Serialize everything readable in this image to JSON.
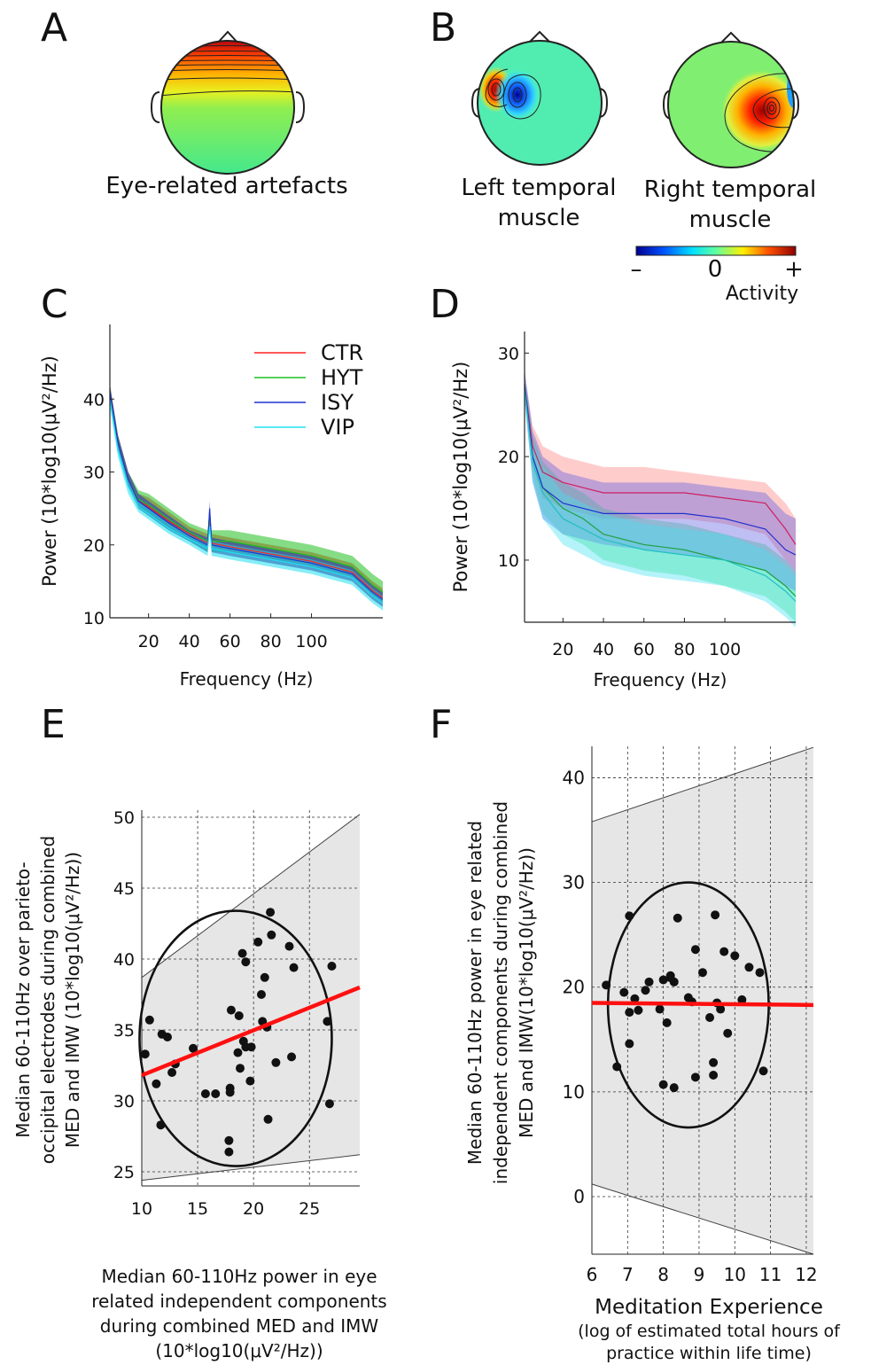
{
  "panels": {
    "A": {
      "letter": "A",
      "caption": "Eye-related artefacts"
    },
    "B": {
      "letter": "B",
      "caption_left_1": "Left temporal",
      "caption_left_2": "muscle",
      "caption_right_1": "Right temporal",
      "caption_right_2": "muscle"
    },
    "C": {
      "letter": "C"
    },
    "D": {
      "letter": "D"
    },
    "E": {
      "letter": "E"
    },
    "F": {
      "letter": "F"
    }
  },
  "colorbar": {
    "minus": "–",
    "zero": "0",
    "plus": "+",
    "label": "Activity",
    "colors": [
      "#00008f",
      "#0050ff",
      "#00dfff",
      "#60ff9f",
      "#ffef00",
      "#ff5000",
      "#8f0000"
    ]
  },
  "chart_data": [
    {
      "id": "C",
      "type": "area",
      "xlabel": "Frequency (Hz)",
      "ylabel": "Power  (10*log10(μV²/Hz)",
      "xticks": [
        20,
        40,
        60,
        80,
        100
      ],
      "yticks": [
        10,
        20,
        30,
        40
      ],
      "xlim": [
        1,
        135
      ],
      "ylim": [
        10,
        50
      ],
      "legend": [
        "CTR",
        "HYT",
        "ISY",
        "VIP"
      ],
      "series": [
        {
          "name": "CTR",
          "color": "#ff2020",
          "x": [
            1,
            5,
            10,
            15,
            20,
            30,
            40,
            49,
            50,
            51,
            60,
            80,
            100,
            120,
            130,
            135
          ],
          "lo": [
            40,
            33,
            28,
            25,
            24,
            22,
            20.5,
            19,
            23,
            19,
            18.5,
            17.5,
            16.5,
            15,
            12.5,
            11.5
          ],
          "hi": [
            42,
            35,
            30,
            27,
            26.5,
            24.5,
            22.5,
            21.5,
            25,
            21.5,
            21,
            20,
            19,
            17.5,
            15,
            14
          ]
        },
        {
          "name": "HYT",
          "color": "#20c020",
          "x": [
            1,
            5,
            10,
            15,
            20,
            30,
            40,
            49,
            50,
            51,
            60,
            80,
            100,
            120,
            130,
            135
          ],
          "lo": [
            40,
            33,
            28,
            25,
            24,
            22,
            20.5,
            19,
            23,
            19,
            19,
            18,
            17,
            15.5,
            13,
            12
          ],
          "hi": [
            42,
            35,
            30,
            27.5,
            27,
            25,
            23,
            22,
            25,
            22,
            22,
            21,
            20,
            18.5,
            16,
            15
          ]
        },
        {
          "name": "ISY",
          "color": "#2030d0",
          "x": [
            1,
            5,
            10,
            15,
            20,
            30,
            40,
            49,
            50,
            51,
            60,
            80,
            100,
            120,
            130,
            135
          ],
          "lo": [
            40,
            33,
            28,
            25,
            24,
            22,
            20.5,
            19,
            24,
            19,
            18.5,
            17.5,
            16.5,
            15,
            12.5,
            11.5
          ],
          "hi": [
            42,
            35,
            30,
            27,
            26,
            24,
            22,
            21,
            26,
            21,
            20.5,
            19.5,
            18.5,
            17,
            14.5,
            13.5
          ]
        },
        {
          "name": "VIP",
          "color": "#20e0f0",
          "x": [
            1,
            5,
            10,
            15,
            20,
            30,
            40,
            49,
            50,
            51,
            60,
            80,
            100,
            120,
            130,
            135
          ],
          "lo": [
            39,
            32,
            27,
            24.5,
            23.5,
            21.5,
            20,
            18.5,
            22,
            18.5,
            18,
            17,
            16,
            14.5,
            12,
            11
          ],
          "hi": [
            41,
            34,
            29,
            26,
            25,
            23,
            21.5,
            20.5,
            23,
            20.5,
            20,
            19,
            18,
            16.5,
            14,
            13
          ]
        }
      ]
    },
    {
      "id": "D",
      "type": "area",
      "xlabel": "Frequency (Hz)",
      "ylabel": "Power  (10*log10(μV²/Hz)",
      "xticks": [
        20,
        40,
        60,
        80,
        100
      ],
      "yticks": [
        10,
        20,
        30
      ],
      "xlim": [
        1,
        135
      ],
      "ylim": [
        4,
        32
      ],
      "series": [
        {
          "name": "CTR",
          "color": "#cc2060",
          "fill": "#ff8080",
          "x": [
            1,
            5,
            10,
            20,
            30,
            40,
            60,
            80,
            100,
            120,
            130,
            135
          ],
          "mid": [
            27,
            21,
            18.5,
            17.5,
            17,
            16.5,
            16.5,
            16.5,
            16,
            15.5,
            13,
            11.5
          ],
          "lo": [
            26,
            19,
            16,
            15,
            14.5,
            14,
            14,
            14,
            13.5,
            12.5,
            10,
            9
          ],
          "hi": [
            28,
            23,
            21,
            20,
            19.5,
            19,
            19,
            18.5,
            18,
            17.5,
            15.5,
            14
          ]
        },
        {
          "name": "HYT",
          "color": "#20a040",
          "fill": "#40e080",
          "x": [
            1,
            5,
            10,
            20,
            30,
            40,
            50,
            60,
            80,
            100,
            120,
            130,
            135
          ],
          "mid": [
            27,
            20,
            17,
            15,
            14,
            12.5,
            12,
            11.5,
            11,
            10,
            9,
            7.5,
            6.5
          ],
          "lo": [
            26,
            18,
            14.5,
            12.5,
            11.5,
            10,
            9.5,
            9,
            8.5,
            7.5,
            6.5,
            5,
            4
          ],
          "hi": [
            28,
            22,
            19.5,
            17.5,
            16.5,
            15,
            14.5,
            14,
            13.5,
            12.5,
            11.5,
            10,
            9
          ]
        },
        {
          "name": "ISY",
          "color": "#2030d0",
          "fill": "#6060e0",
          "x": [
            1,
            5,
            10,
            20,
            30,
            40,
            60,
            80,
            100,
            120,
            130,
            135
          ],
          "mid": [
            27,
            20,
            17,
            15.5,
            15,
            14.5,
            14.5,
            14.5,
            14,
            13,
            11,
            10.5
          ],
          "lo": [
            25.5,
            17.5,
            14,
            12.5,
            12,
            11.5,
            11,
            10.5,
            10,
            9,
            7.5,
            7
          ],
          "hi": [
            28.5,
            22.5,
            20,
            18.5,
            18,
            17.5,
            17.5,
            17.5,
            17,
            16.5,
            14.5,
            14
          ]
        },
        {
          "name": "VIP",
          "color": "#20c0c0",
          "fill": "#40e0f0",
          "x": [
            1,
            5,
            10,
            20,
            30,
            40,
            50,
            60,
            80,
            100,
            120,
            130,
            135
          ],
          "mid": [
            26.5,
            19.5,
            16.5,
            14,
            13,
            12,
            11.5,
            11,
            10.5,
            10,
            8.5,
            7,
            6
          ],
          "lo": [
            25.5,
            17.5,
            14,
            11.5,
            10.5,
            9.5,
            9,
            8.5,
            8,
            7.5,
            6,
            4.5,
            3.5
          ],
          "hi": [
            27.5,
            21.5,
            19,
            16.5,
            15.5,
            14.5,
            14,
            13.5,
            13,
            12.5,
            11,
            9.5,
            8.5
          ]
        }
      ]
    },
    {
      "id": "E",
      "type": "scatter",
      "xlabel_lines": [
        "Median 60-110Hz power in eye",
        "related independent components",
        "during combined MED and IMW",
        "(10*log10(μV²/Hz))"
      ],
      "ylabel_lines": [
        "Median 60-110Hz over parieto-",
        "occipital electrodes during combined",
        "MED and IMW (10*log10(μV²/Hz))"
      ],
      "xticks": [
        10,
        15,
        20,
        25
      ],
      "yticks": [
        25,
        30,
        35,
        40,
        45,
        50
      ],
      "xlim": [
        10,
        29.5
      ],
      "ylim": [
        24,
        50.5
      ],
      "points": [
        [
          10.3,
          33.3
        ],
        [
          10.7,
          35.7
        ],
        [
          11.3,
          31.2
        ],
        [
          11.7,
          28.3
        ],
        [
          11.8,
          34.7
        ],
        [
          12.3,
          34.5
        ],
        [
          12.7,
          32
        ],
        [
          13,
          32.6
        ],
        [
          14.6,
          33.7
        ],
        [
          15.7,
          30.5
        ],
        [
          16.6,
          30.5
        ],
        [
          17.8,
          26.4
        ],
        [
          17.8,
          27.2
        ],
        [
          17.9,
          30.9
        ],
        [
          17.9,
          30.6
        ],
        [
          18,
          36.4
        ],
        [
          18.6,
          33.4
        ],
        [
          18.7,
          36
        ],
        [
          18.8,
          32.3
        ],
        [
          19,
          40.4
        ],
        [
          19.1,
          34.2
        ],
        [
          19.3,
          39.8
        ],
        [
          19.3,
          33.8
        ],
        [
          19.7,
          31.4
        ],
        [
          19.8,
          33.8
        ],
        [
          20.4,
          41.2
        ],
        [
          20.7,
          37.5
        ],
        [
          20.8,
          35.6
        ],
        [
          21,
          38.7
        ],
        [
          21.2,
          35.2
        ],
        [
          21.3,
          28.7
        ],
        [
          21.5,
          43.3
        ],
        [
          21.6,
          41.7
        ],
        [
          22,
          32.7
        ],
        [
          23.2,
          40.9
        ],
        [
          23.4,
          33.1
        ],
        [
          23.6,
          39.4
        ],
        [
          26.6,
          35.6
        ],
        [
          26.8,
          29.8
        ],
        [
          27,
          39.5
        ]
      ],
      "fit": {
        "x": [
          10,
          29.5
        ],
        "y": [
          31.8,
          38.0
        ]
      },
      "band": {
        "x": [
          10,
          29.5
        ],
        "lo": [
          24.4,
          26.2
        ],
        "hi": [
          38.7,
          50.2
        ]
      },
      "ellipse": {
        "cx": 18.4,
        "cy": 34.4,
        "rx": 8.6,
        "ry": 9.0
      }
    },
    {
      "id": "F",
      "type": "scatter",
      "xlabel": "Meditation Experience",
      "xlabel_sub": [
        "(log of estimated total hours of",
        "practice within life time)"
      ],
      "ylabel_lines": [
        "Median 60-110Hz power in eye related",
        "independent components during combined",
        "MED and IMW(10*log10(μV²/Hz))"
      ],
      "xticks": [
        6,
        7,
        8,
        9,
        10,
        11,
        12
      ],
      "yticks": [
        0,
        10,
        20,
        30,
        40
      ],
      "xlim": [
        6,
        12.2
      ],
      "ylim": [
        -5.5,
        43
      ],
      "points": [
        [
          6.4,
          20.2
        ],
        [
          6.7,
          12.4
        ],
        [
          6.9,
          19.5
        ],
        [
          7.05,
          26.8
        ],
        [
          7.05,
          14.6
        ],
        [
          7.05,
          17.6
        ],
        [
          7.2,
          18.9
        ],
        [
          7.3,
          17.8
        ],
        [
          7.5,
          19.7
        ],
        [
          7.6,
          20.5
        ],
        [
          7.9,
          17.9
        ],
        [
          8,
          20.7
        ],
        [
          8,
          10.7
        ],
        [
          8.1,
          16.6
        ],
        [
          8.2,
          21.1
        ],
        [
          8.2,
          20.9
        ],
        [
          8.3,
          20.5
        ],
        [
          8.3,
          10.4
        ],
        [
          8.4,
          26.6
        ],
        [
          8.7,
          19
        ],
        [
          8.8,
          18.6
        ],
        [
          8.9,
          23.6
        ],
        [
          8.9,
          11.4
        ],
        [
          9.1,
          21.4
        ],
        [
          9.3,
          17.1
        ],
        [
          9.4,
          12.8
        ],
        [
          9.4,
          11.6
        ],
        [
          9.45,
          26.9
        ],
        [
          9.5,
          18.5
        ],
        [
          9.6,
          17.9
        ],
        [
          9.7,
          23.4
        ],
        [
          9.8,
          15.6
        ],
        [
          10,
          23
        ],
        [
          10.2,
          18.8
        ],
        [
          10.4,
          21.9
        ],
        [
          10.7,
          21.4
        ],
        [
          10.8,
          12
        ]
      ],
      "fit": {
        "x": [
          6,
          12.2
        ],
        "y": [
          18.5,
          18.3
        ]
      },
      "band": {
        "x": [
          6,
          12.2
        ],
        "lo": [
          1.2,
          -5.5
        ],
        "hi": [
          35.8,
          42.9
        ]
      },
      "ellipse": {
        "cx": 8.7,
        "cy": 18.3,
        "rx": 2.25,
        "ry": 11.7
      }
    }
  ]
}
